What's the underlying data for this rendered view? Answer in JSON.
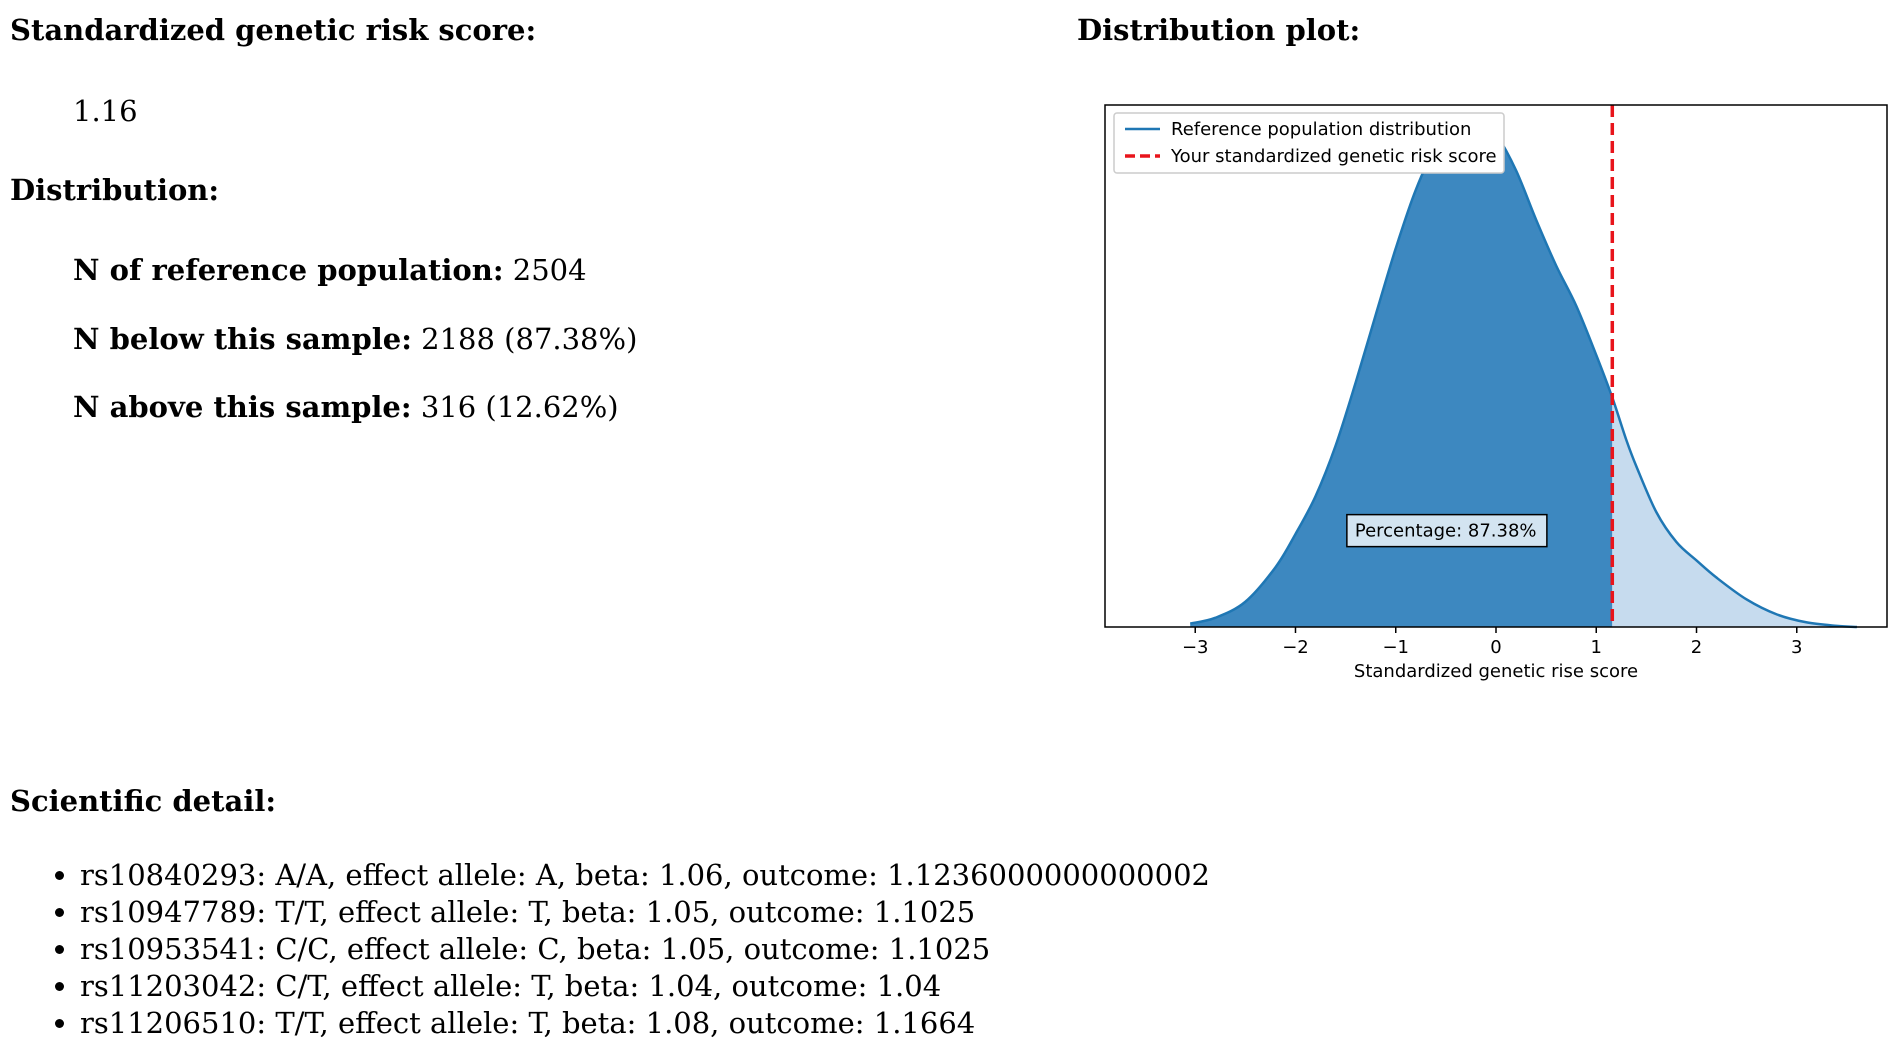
{
  "score_section": {
    "title": "Standardized genetic risk score:",
    "value": "1.16"
  },
  "distribution_section": {
    "title": "Distribution:",
    "stats": [
      {
        "label": "N of reference population:",
        "value": "2504"
      },
      {
        "label": "N below this sample:",
        "value": "2188 (87.38%)"
      },
      {
        "label": "N above this sample:",
        "value": "316 (12.62%)"
      }
    ]
  },
  "plot_section": {
    "title": "Distribution plot:"
  },
  "detail_section": {
    "title": "Scientific detail:",
    "items": [
      "rs10840293: A/A, effect allele: A, beta: 1.06, outcome: 1.1236000000000002",
      "rs10947789: T/T, effect allele: T, beta: 1.05, outcome: 1.1025",
      "rs10953541: C/C, effect allele: C, beta: 1.05, outcome: 1.1025",
      "rs11203042: C/T, effect allele: T, beta: 1.04, outcome: 1.04",
      "rs11206510: T/T, effect allele: T, beta: 1.08, outcome: 1.1664"
    ]
  },
  "chart_data": {
    "type": "area",
    "xlabel": "Standardized genetic rise score",
    "ylabel": "",
    "xlim": [
      -3.9,
      3.9
    ],
    "ylim": [
      0,
      0.455
    ],
    "x_ticks": [
      -3,
      -2,
      -1,
      0,
      1,
      2,
      3
    ],
    "x_tick_labels": [
      "−3",
      "−2",
      "−1",
      "0",
      "1",
      "2",
      "3"
    ],
    "grid": false,
    "legend": {
      "placement": "upper-left",
      "entries": [
        {
          "label": "Reference population distribution",
          "style": "solid",
          "color": "#1f77b4"
        },
        {
          "label": "Your standardized genetic risk score",
          "style": "dashed",
          "color": "#e8141b"
        }
      ]
    },
    "curve": {
      "x": [
        -3.05,
        -2.8,
        -2.5,
        -2.2,
        -2.0,
        -1.8,
        -1.6,
        -1.4,
        -1.2,
        -1.0,
        -0.8,
        -0.6,
        -0.4,
        -0.3,
        -0.2,
        -0.1,
        0.0,
        0.2,
        0.4,
        0.6,
        0.8,
        1.0,
        1.16,
        1.3,
        1.4,
        1.6,
        1.8,
        2.0,
        2.2,
        2.5,
        2.8,
        3.1,
        3.4,
        3.6
      ],
      "y": [
        0.003,
        0.008,
        0.022,
        0.052,
        0.081,
        0.114,
        0.158,
        0.213,
        0.272,
        0.33,
        0.381,
        0.418,
        0.437,
        0.44,
        0.441,
        0.438,
        0.43,
        0.398,
        0.355,
        0.315,
        0.28,
        0.237,
        0.2,
        0.163,
        0.14,
        0.1,
        0.074,
        0.058,
        0.043,
        0.024,
        0.011,
        0.004,
        0.001,
        0.0
      ]
    },
    "marker_value": 1.16,
    "fill_below_color": "#3d88c0",
    "fill_above_color": "#c6dbee",
    "line_color": "#1f77b4",
    "annotation": {
      "text": "Percentage: 87.38%",
      "x": -0.5,
      "y": 0.084
    }
  }
}
